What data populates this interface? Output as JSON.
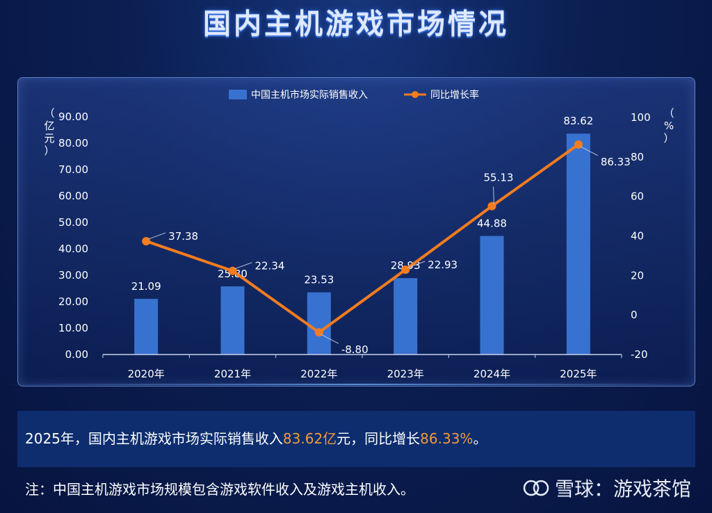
{
  "title": "国内主机游戏市场情况",
  "legend": {
    "bar_label": "中国主机市场实际销售收入",
    "line_label": "同比增长率"
  },
  "axes": {
    "left_unit_chars": [
      "（",
      "亿",
      "元",
      "）"
    ],
    "right_unit_chars": [
      "（",
      "%",
      "）"
    ]
  },
  "chart_data": {
    "type": "bar",
    "categories": [
      "2020年",
      "2021年",
      "2022年",
      "2023年",
      "2024年",
      "2025年"
    ],
    "series": [
      {
        "name": "中国主机市场实际销售收入",
        "type": "bar",
        "axis": "left",
        "values": [
          21.09,
          25.8,
          23.53,
          28.93,
          44.88,
          83.62
        ]
      },
      {
        "name": "同比增长率",
        "type": "line",
        "axis": "right",
        "values": [
          37.38,
          22.34,
          -8.8,
          22.93,
          55.13,
          86.33
        ]
      }
    ],
    "left_axis": {
      "min": 0,
      "max": 90,
      "step": 10,
      "ticks": [
        "0.00",
        "10.00",
        "20.00",
        "30.00",
        "40.00",
        "50.00",
        "60.00",
        "70.00",
        "80.00",
        "90.00"
      ]
    },
    "right_axis": {
      "min": -20,
      "max": 100,
      "step": 20,
      "ticks": [
        "-20",
        "0",
        "20",
        "40",
        "60",
        "80",
        "100"
      ]
    },
    "bar_labels": [
      "21.09",
      "25.80",
      "23.53",
      "28.93",
      "44.88",
      "83.62"
    ],
    "line_labels": [
      "37.38",
      "22.34",
      "-8.80",
      "22.93",
      "55.13",
      "86.33"
    ],
    "colors": {
      "bar": "#3872d0",
      "line": "#f57c1f",
      "axis_text": "#ffffff",
      "leader": "#b8c2d8"
    }
  },
  "summary": {
    "prefix": "2025年，国内主机游戏市场实际销售收入",
    "revenue": "83.62亿",
    "middle": "元，同比增长",
    "growth": "86.33%",
    "suffix": "。"
  },
  "note": "注：中国主机游戏市场规模包含游戏软件收入及游戏主机收入。",
  "brand": {
    "name": "雪球：游戏茶馆"
  }
}
